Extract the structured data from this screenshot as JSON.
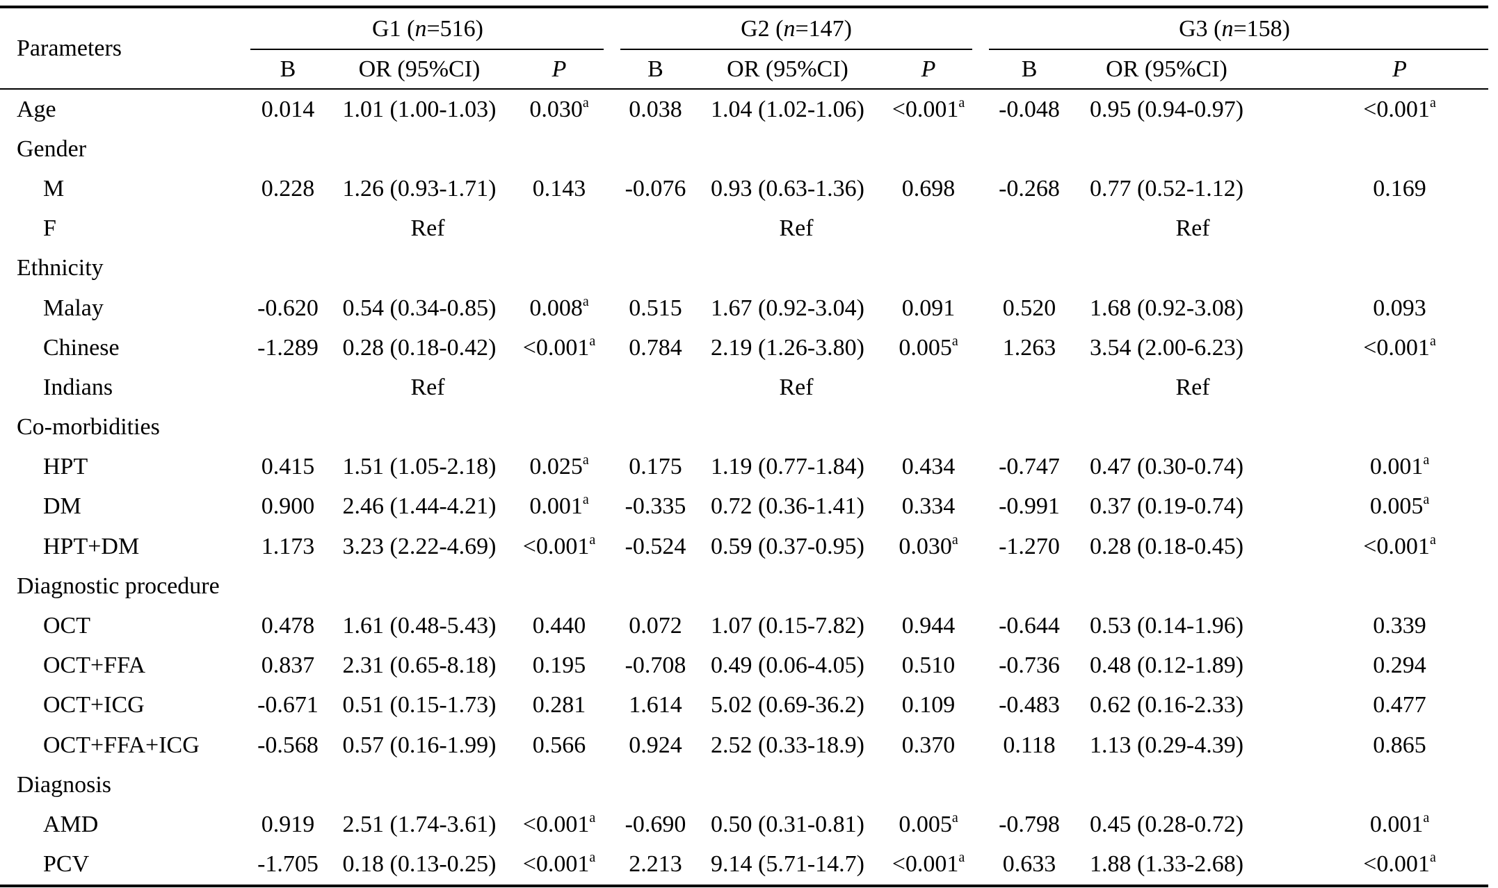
{
  "header": {
    "parameters": "Parameters",
    "groups": [
      {
        "name": "G1",
        "n_label": "n",
        "n_value": "=516"
      },
      {
        "name": "G2",
        "n_label": "n",
        "n_value": "=147"
      },
      {
        "name": "G3",
        "n_label": "n",
        "n_value": "=158"
      }
    ],
    "cols": {
      "b": "B",
      "or": "OR (95%CI)",
      "p": "P"
    }
  },
  "sig_marker": "a",
  "rows": [
    {
      "label": "Age",
      "sub": false,
      "g": [
        {
          "b": "0.014",
          "or": "1.01 (1.00-1.03)",
          "p": "0.030",
          "sig": true
        },
        {
          "b": "0.038",
          "or": "1.04 (1.02-1.06)",
          "p": "<0.001",
          "sig": true
        },
        {
          "b": "-0.048",
          "or": "0.95 (0.94-0.97)",
          "p": "<0.001",
          "sig": true
        }
      ]
    },
    {
      "label": "Gender",
      "sub": false,
      "heading": true
    },
    {
      "label": "M",
      "sub": true,
      "g": [
        {
          "b": "0.228",
          "or": "1.26 (0.93-1.71)",
          "p": "0.143",
          "sig": false
        },
        {
          "b": "-0.076",
          "or": "0.93 (0.63-1.36)",
          "p": "0.698",
          "sig": false
        },
        {
          "b": "-0.268",
          "or": "0.77 (0.52-1.12)",
          "p": "0.169",
          "sig": false
        }
      ]
    },
    {
      "label": "F",
      "sub": true,
      "ref": "Ref"
    },
    {
      "label": "Ethnicity",
      "sub": false,
      "heading": true
    },
    {
      "label": "Malay",
      "sub": true,
      "g": [
        {
          "b": "-0.620",
          "or": "0.54 (0.34-0.85)",
          "p": "0.008",
          "sig": true
        },
        {
          "b": "0.515",
          "or": "1.67 (0.92-3.04)",
          "p": "0.091",
          "sig": false
        },
        {
          "b": "0.520",
          "or": "1.68 (0.92-3.08)",
          "p": "0.093",
          "sig": false
        }
      ]
    },
    {
      "label": "Chinese",
      "sub": true,
      "g": [
        {
          "b": "-1.289",
          "or": "0.28 (0.18-0.42)",
          "p": "<0.001",
          "sig": true
        },
        {
          "b": "0.784",
          "or": "2.19 (1.26-3.80)",
          "p": "0.005",
          "sig": true
        },
        {
          "b": "1.263",
          "or": "3.54 (2.00-6.23)",
          "p": "<0.001",
          "sig": true
        }
      ]
    },
    {
      "label": "Indians",
      "sub": true,
      "ref": "Ref"
    },
    {
      "label": "Co-morbidities",
      "sub": false,
      "heading": true
    },
    {
      "label": "HPT",
      "sub": true,
      "g": [
        {
          "b": "0.415",
          "or": "1.51 (1.05-2.18)",
          "p": "0.025",
          "sig": true
        },
        {
          "b": "0.175",
          "or": "1.19 (0.77-1.84)",
          "p": "0.434",
          "sig": false
        },
        {
          "b": "-0.747",
          "or": "0.47 (0.30-0.74)",
          "p": "0.001",
          "sig": true
        }
      ]
    },
    {
      "label": "DM",
      "sub": true,
      "g": [
        {
          "b": "0.900",
          "or": "2.46 (1.44-4.21)",
          "p": "0.001",
          "sig": true
        },
        {
          "b": "-0.335",
          "or": "0.72 (0.36-1.41)",
          "p": "0.334",
          "sig": false
        },
        {
          "b": "-0.991",
          "or": "0.37 (0.19-0.74)",
          "p": "0.005",
          "sig": true
        }
      ]
    },
    {
      "label": "HPT+DM",
      "sub": true,
      "g": [
        {
          "b": "1.173",
          "or": "3.23 (2.22-4.69)",
          "p": "<0.001",
          "sig": true
        },
        {
          "b": "-0.524",
          "or": "0.59 (0.37-0.95)",
          "p": "0.030",
          "sig": true
        },
        {
          "b": "-1.270",
          "or": "0.28 (0.18-0.45)",
          "p": "<0.001",
          "sig": true
        }
      ]
    },
    {
      "label": "Diagnostic procedure",
      "sub": false,
      "heading": true
    },
    {
      "label": "OCT",
      "sub": true,
      "g": [
        {
          "b": "0.478",
          "or": "1.61 (0.48-5.43)",
          "p": "0.440",
          "sig": false
        },
        {
          "b": "0.072",
          "or": "1.07 (0.15-7.82)",
          "p": "0.944",
          "sig": false
        },
        {
          "b": "-0.644",
          "or": "0.53 (0.14-1.96)",
          "p": "0.339",
          "sig": false
        }
      ]
    },
    {
      "label": "OCT+FFA",
      "sub": true,
      "g": [
        {
          "b": "0.837",
          "or": "2.31 (0.65-8.18)",
          "p": "0.195",
          "sig": false
        },
        {
          "b": "-0.708",
          "or": "0.49 (0.06-4.05)",
          "p": "0.510",
          "sig": false
        },
        {
          "b": "-0.736",
          "or": "0.48 (0.12-1.89)",
          "p": "0.294",
          "sig": false
        }
      ]
    },
    {
      "label": "OCT+ICG",
      "sub": true,
      "g": [
        {
          "b": "-0.671",
          "or": "0.51 (0.15-1.73)",
          "p": "0.281",
          "sig": false
        },
        {
          "b": "1.614",
          "or": "5.02 (0.69-36.2)",
          "p": "0.109",
          "sig": false
        },
        {
          "b": "-0.483",
          "or": "0.62 (0.16-2.33)",
          "p": "0.477",
          "sig": false
        }
      ]
    },
    {
      "label": "OCT+FFA+ICG",
      "sub": true,
      "g": [
        {
          "b": "-0.568",
          "or": "0.57 (0.16-1.99)",
          "p": "0.566",
          "sig": false
        },
        {
          "b": "0.924",
          "or": "2.52 (0.33-18.9)",
          "p": "0.370",
          "sig": false
        },
        {
          "b": "0.118",
          "or": "1.13 (0.29-4.39)",
          "p": "0.865",
          "sig": false
        }
      ]
    },
    {
      "label": "Diagnosis",
      "sub": false,
      "heading": true
    },
    {
      "label": "AMD",
      "sub": true,
      "g": [
        {
          "b": "0.919",
          "or": "2.51 (1.74-3.61)",
          "p": "<0.001",
          "sig": true
        },
        {
          "b": "-0.690",
          "or": "0.50 (0.31-0.81)",
          "p": "0.005",
          "sig": true
        },
        {
          "b": "-0.798",
          "or": "0.45 (0.28-0.72)",
          "p": "0.001",
          "sig": true
        }
      ]
    },
    {
      "label": "PCV",
      "sub": true,
      "g": [
        {
          "b": "-1.705",
          "or": "0.18 (0.13-0.25)",
          "p": "<0.001",
          "sig": true
        },
        {
          "b": "2.213",
          "or": "9.14 (5.71-14.7)",
          "p": "<0.001",
          "sig": true
        },
        {
          "b": "0.633",
          "or": "1.88 (1.33-2.68)",
          "p": "<0.001",
          "sig": true
        }
      ]
    }
  ]
}
